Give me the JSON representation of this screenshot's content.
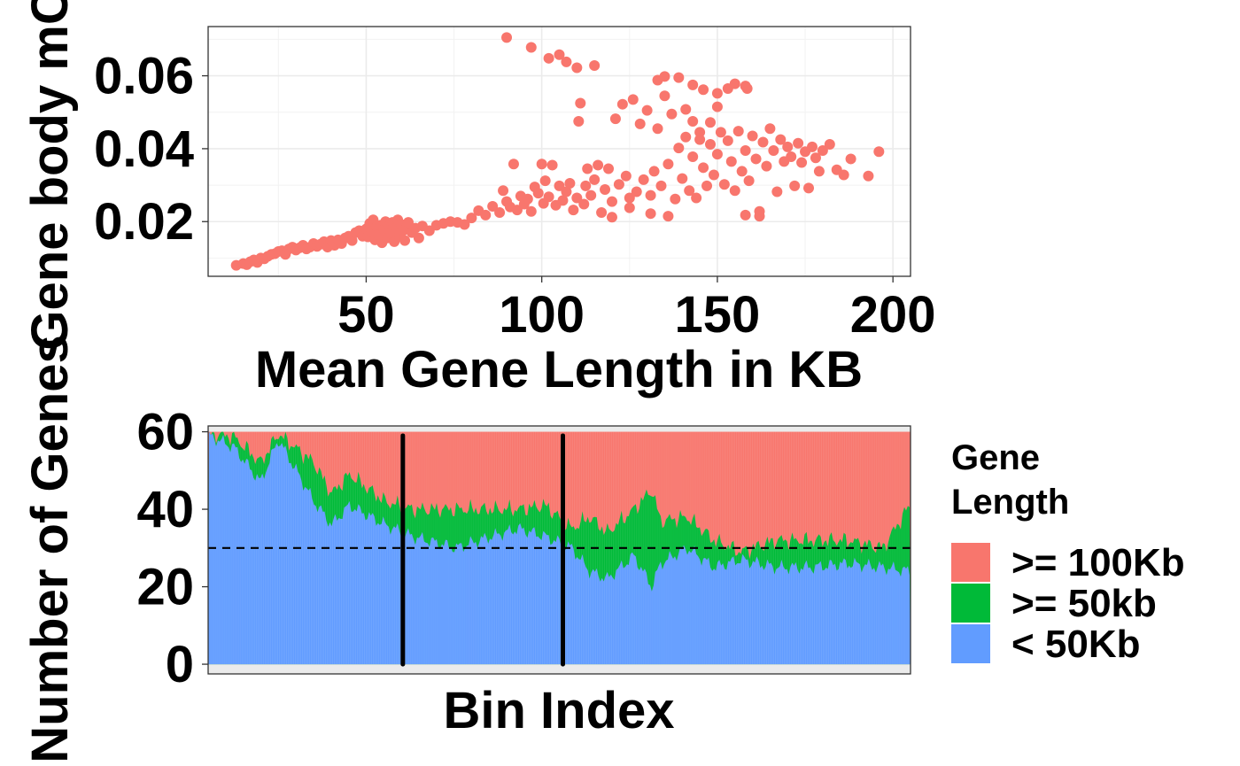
{
  "chart_data": [
    {
      "type": "scatter",
      "xlabel": "Mean Gene Length in KB",
      "ylabel": "Gene body mCA",
      "xlim": [
        5,
        205
      ],
      "ylim": [
        0.005,
        0.0735
      ],
      "x_ticks": [
        50,
        100,
        150,
        200
      ],
      "x_tick_labels": [
        "50",
        "100",
        "150",
        "200"
      ],
      "y_ticks": [
        0.02,
        0.04,
        0.06
      ],
      "y_tick_labels": [
        "0.02",
        "0.04",
        "0.06"
      ],
      "grid": true,
      "color": "#F8766D",
      "points": [
        [
          13,
          0.008
        ],
        [
          15,
          0.0085
        ],
        [
          16,
          0.0082
        ],
        [
          17,
          0.009
        ],
        [
          18,
          0.0095
        ],
        [
          19,
          0.0088
        ],
        [
          20,
          0.01
        ],
        [
          21,
          0.0098
        ],
        [
          22,
          0.0105
        ],
        [
          23,
          0.011
        ],
        [
          24,
          0.0112
        ],
        [
          25,
          0.0118
        ],
        [
          26,
          0.012
        ],
        [
          27,
          0.011
        ],
        [
          28,
          0.0125
        ],
        [
          29,
          0.013
        ],
        [
          30,
          0.0122
        ],
        [
          31,
          0.0128
        ],
        [
          32,
          0.0135
        ],
        [
          33,
          0.0125
        ],
        [
          34,
          0.013
        ],
        [
          35,
          0.014
        ],
        [
          36,
          0.0132
        ],
        [
          37,
          0.0138
        ],
        [
          38,
          0.0145
        ],
        [
          39,
          0.013
        ],
        [
          40,
          0.0148
        ],
        [
          41,
          0.0135
        ],
        [
          42,
          0.015
        ],
        [
          43,
          0.014
        ],
        [
          44,
          0.0155
        ],
        [
          45,
          0.016
        ],
        [
          46,
          0.0148
        ],
        [
          47,
          0.017
        ],
        [
          48,
          0.0175
        ],
        [
          49,
          0.016
        ],
        [
          50,
          0.018
        ],
        [
          50.5,
          0.0158
        ],
        [
          51,
          0.0195
        ],
        [
          51.5,
          0.0172
        ],
        [
          52,
          0.0205
        ],
        [
          52.5,
          0.015
        ],
        [
          53,
          0.0185
        ],
        [
          53.5,
          0.0165
        ],
        [
          54,
          0.019
        ],
        [
          54.5,
          0.0142
        ],
        [
          55,
          0.0178
        ],
        [
          55.5,
          0.02
        ],
        [
          56,
          0.0155
        ],
        [
          56.5,
          0.0188
        ],
        [
          57,
          0.0168
        ],
        [
          57.5,
          0.0198
        ],
        [
          58,
          0.0145
        ],
        [
          58.5,
          0.0182
        ],
        [
          59,
          0.0205
        ],
        [
          59.5,
          0.016
        ],
        [
          60,
          0.0192
        ],
        [
          60.5,
          0.0175
        ],
        [
          61,
          0.0148
        ],
        [
          61.5,
          0.0185
        ],
        [
          62,
          0.0198
        ],
        [
          63,
          0.017
        ],
        [
          64,
          0.0182
        ],
        [
          65,
          0.0155
        ],
        [
          66,
          0.0188
        ],
        [
          68,
          0.0175
        ],
        [
          70,
          0.019
        ],
        [
          72,
          0.0195
        ],
        [
          74,
          0.02
        ],
        [
          76,
          0.0198
        ],
        [
          78,
          0.0192
        ],
        [
          80,
          0.021
        ],
        [
          82,
          0.023
        ],
        [
          84,
          0.0218
        ],
        [
          86,
          0.0242
        ],
        [
          88,
          0.0225
        ],
        [
          89,
          0.0285
        ],
        [
          90,
          0.0255
        ],
        [
          91,
          0.024
        ],
        [
          92,
          0.0358
        ],
        [
          93,
          0.0232
        ],
        [
          94,
          0.027
        ],
        [
          95,
          0.0248
        ],
        [
          96,
          0.0262
        ],
        [
          97,
          0.0228
        ],
        [
          98,
          0.0295
        ],
        [
          99,
          0.0278
        ],
        [
          100,
          0.0358
        ],
        [
          100.5,
          0.025
        ],
        [
          101,
          0.0312
        ],
        [
          102,
          0.0268
        ],
        [
          103,
          0.0355
        ],
        [
          104,
          0.0245
        ],
        [
          105,
          0.0298
        ],
        [
          106,
          0.0258
        ],
        [
          107,
          0.0282
        ],
        [
          108,
          0.0305
        ],
        [
          109,
          0.0232
        ],
        [
          110,
          0.0265
        ],
        [
          110.5,
          0.0475
        ],
        [
          111,
          0.0525
        ],
        [
          112,
          0.0248
        ],
        [
          112.5,
          0.0298
        ],
        [
          113,
          0.0345
        ],
        [
          114,
          0.0272
        ],
        [
          115,
          0.0315
        ],
        [
          116,
          0.0355
        ],
        [
          117,
          0.0225
        ],
        [
          118,
          0.0288
        ],
        [
          119,
          0.0345
        ],
        [
          120,
          0.0255
        ],
        [
          121,
          0.0482
        ],
        [
          122,
          0.0302
        ],
        [
          123,
          0.0522
        ],
        [
          124,
          0.0325
        ],
        [
          125,
          0.0265
        ],
        [
          126,
          0.0535
        ],
        [
          127,
          0.0282
        ],
        [
          128,
          0.0468
        ],
        [
          129,
          0.0315
        ],
        [
          130,
          0.0505
        ],
        [
          131,
          0.0272
        ],
        [
          132,
          0.0338
        ],
        [
          133,
          0.0455
        ],
        [
          134,
          0.0298
        ],
        [
          135,
          0.0545
        ],
        [
          136,
          0.0358
        ],
        [
          137,
          0.0495
        ],
        [
          138,
          0.0262
        ],
        [
          139,
          0.0402
        ],
        [
          140,
          0.0318
        ],
        [
          141,
          0.0432
        ],
        [
          142,
          0.0285
        ],
        [
          143,
          0.0378
        ],
        [
          144,
          0.0265
        ],
        [
          145,
          0.0445
        ],
        [
          146,
          0.0348
        ],
        [
          147,
          0.0298
        ],
        [
          148,
          0.0412
        ],
        [
          149,
          0.0328
        ],
        [
          150,
          0.0385
        ],
        [
          151,
          0.0445
        ],
        [
          152,
          0.0302
        ],
        [
          153,
          0.0422
        ],
        [
          154,
          0.0365
        ],
        [
          155,
          0.0285
        ],
        [
          156,
          0.0448
        ],
        [
          157,
          0.0338
        ],
        [
          158,
          0.0395
        ],
        [
          159,
          0.0312
        ],
        [
          160,
          0.0435
        ],
        [
          161,
          0.0372
        ],
        [
          162,
          0.0228
        ],
        [
          163,
          0.0418
        ],
        [
          164,
          0.0352
        ],
        [
          165,
          0.0455
        ],
        [
          166,
          0.0395
        ],
        [
          167,
          0.0282
        ],
        [
          168,
          0.0425
        ],
        [
          169,
          0.0365
        ],
        [
          170,
          0.0405
        ],
        [
          171,
          0.0378
        ],
        [
          172,
          0.0298
        ],
        [
          173,
          0.0415
        ],
        [
          174,
          0.0362
        ],
        [
          175,
          0.0392
        ],
        [
          176,
          0.0292
        ],
        [
          177,
          0.0405
        ],
        [
          178,
          0.0375
        ],
        [
          179,
          0.0338
        ],
        [
          180,
          0.0395
        ],
        [
          182,
          0.0412
        ],
        [
          184,
          0.0342
        ],
        [
          186,
          0.0328
        ],
        [
          188,
          0.0372
        ],
        [
          193,
          0.0325
        ],
        [
          196,
          0.0392
        ],
        [
          90,
          0.0705
        ],
        [
          97,
          0.0678
        ],
        [
          102,
          0.0648
        ],
        [
          105,
          0.0658
        ],
        [
          107,
          0.0638
        ],
        [
          110,
          0.0622
        ],
        [
          115,
          0.0628
        ],
        [
          133,
          0.0588
        ],
        [
          135,
          0.0598
        ],
        [
          139,
          0.0595
        ],
        [
          143,
          0.0575
        ],
        [
          146,
          0.0562
        ],
        [
          150,
          0.0552
        ],
        [
          153,
          0.0565
        ],
        [
          155,
          0.0578
        ],
        [
          158,
          0.0572
        ],
        [
          158.5,
          0.0565
        ],
        [
          148,
          0.0472
        ],
        [
          150,
          0.0515
        ],
        [
          141,
          0.0508
        ],
        [
          143,
          0.0475
        ],
        [
          145,
          0.0425
        ],
        [
          162,
          0.0215
        ],
        [
          158,
          0.0218
        ],
        [
          136,
          0.0215
        ],
        [
          131,
          0.0222
        ],
        [
          125,
          0.0238
        ],
        [
          120,
          0.0212
        ]
      ]
    },
    {
      "type": "area",
      "xlabel": "Bin Index",
      "ylabel": "Number of Genes",
      "ylim": [
        -2.5,
        61.5
      ],
      "y_ticks": [
        0,
        20,
        40,
        60
      ],
      "y_tick_labels": [
        "0",
        "20",
        "40",
        "60"
      ],
      "grid": false,
      "hline": 30,
      "vlines": [
        110,
        200
      ],
      "total": 60,
      "legend": {
        "title": "Gene\nLength",
        "position": "right",
        "entries": [
          {
            "label": ">= 100Kb",
            "color": "#F8766D"
          },
          {
            "label": ">= 50kb",
            "color": "#00BA38"
          },
          {
            "label": "< 50Kb",
            "color": "#619CFF"
          }
        ]
      },
      "x": [
        1,
        15,
        30,
        40,
        60,
        70,
        80,
        100,
        115,
        140,
        160,
        175,
        190,
        205,
        215,
        225,
        240,
        250,
        255,
        270,
        285,
        300,
        320,
        340,
        360,
        380,
        395
      ],
      "series": [
        {
          "name": "< 50Kb",
          "values": [
            59,
            56,
            47,
            58,
            42,
            36,
            41,
            36,
            33,
            30,
            33,
            35,
            33,
            30,
            24,
            22,
            28,
            20,
            26,
            30,
            25,
            27,
            25,
            25,
            26,
            25,
            24
          ]
        },
        {
          "name": ">= 50kb",
          "values": [
            0.5,
            2.8,
            5,
            1.5,
            10,
            8,
            8,
            6,
            7,
            10,
            7,
            5,
            8,
            5,
            14,
            12,
            12,
            25,
            11,
            8,
            7,
            2,
            7,
            7,
            6,
            5,
            17
          ]
        },
        {
          "name": ">= 100Kb",
          "values": [
            0.5,
            1.2,
            8,
            0.5,
            8,
            16,
            11,
            18,
            20,
            20,
            20,
            20,
            19,
            25,
            22,
            26,
            20,
            15,
            23,
            22,
            28,
            31,
            28,
            28,
            28,
            30,
            19
          ]
        }
      ]
    }
  ]
}
